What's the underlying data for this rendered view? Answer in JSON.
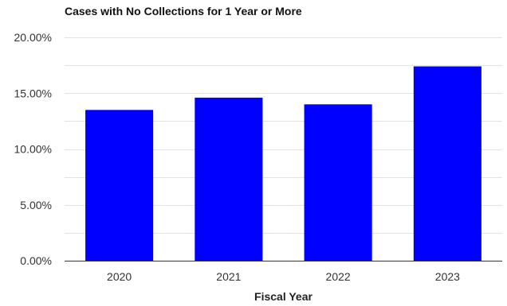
{
  "chart_data": {
    "type": "bar",
    "title": "Cases with No Collections for 1 Year or More",
    "xlabel": "Fiscal Year",
    "ylabel": "",
    "categories": [
      "2020",
      "2021",
      "2022",
      "2023"
    ],
    "values": [
      13.5,
      14.6,
      14.0,
      17.4
    ],
    "ylim": [
      0,
      20
    ],
    "yticks": [
      0,
      5,
      10,
      15,
      20
    ],
    "ytick_labels": [
      "0.00%",
      "5.00%",
      "10.00%",
      "15.00%",
      "20.00%"
    ],
    "grid": true,
    "legend": "none",
    "bar_color": "#0000ff"
  }
}
